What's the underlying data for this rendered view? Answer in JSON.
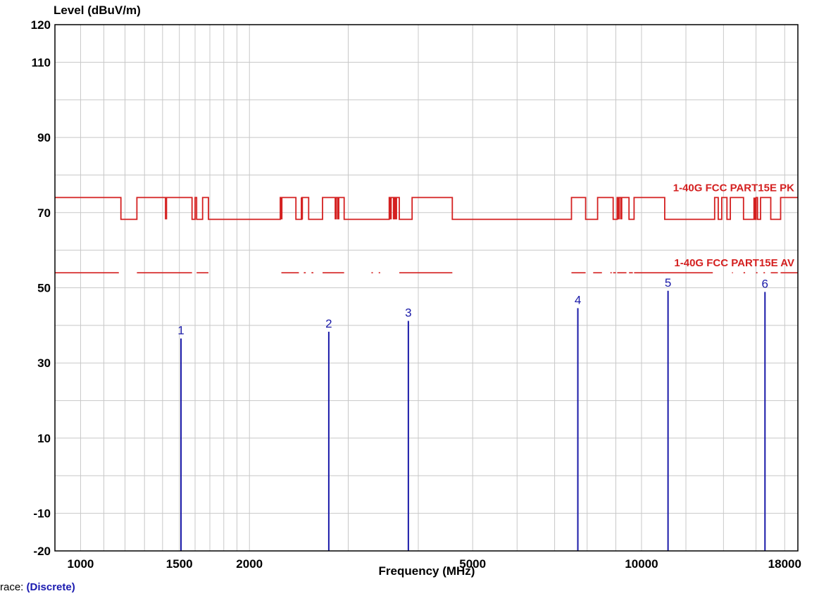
{
  "chart_data": {
    "type": "line",
    "ylabel": "Level (dBuV/m)",
    "xlabel": "Frequency (MHz)",
    "x_scale": "log",
    "xlim": [
      900,
      19000
    ],
    "ylim": [
      -20,
      120
    ],
    "y_ticks": [
      120,
      110,
      90,
      70,
      50,
      30,
      10,
      -10,
      -20
    ],
    "y_tick_labels": [
      "120",
      "110",
      "90",
      "70",
      "50",
      "30",
      "10",
      "-10",
      "-20"
    ],
    "x_ticks": [
      1000,
      1500,
      2000,
      5000,
      10000,
      18000
    ],
    "x_tick_labels": [
      "1000",
      "1500",
      "2000",
      "5000",
      "10000",
      "18000"
    ],
    "grid": true,
    "limit_lines": [
      {
        "name": "1-40G FCC PART15E PK",
        "color": "#d42020",
        "high": 74,
        "low": 68.2,
        "dips": [
          [
            1180,
            1260
          ],
          [
            1580,
            1600
          ],
          [
            1610,
            1650
          ],
          [
            1690,
            4300
          ],
          [
            7500,
            7950
          ],
          [
            8350,
            8600
          ],
          [
            9400,
            9500
          ],
          [
            9700,
            11000
          ],
          [
            13500,
            13700
          ],
          [
            13900,
            14200
          ],
          [
            14400,
            15200
          ],
          [
            16000,
            16100
          ],
          [
            16300,
            17000
          ],
          [
            17700,
            18000
          ]
        ],
        "spikes": [
          1420,
          2280,
          2480,
          2850,
          2880,
          3570,
          3620,
          3650,
          9100,
          9200,
          15900
        ],
        "segments": [
          [
            900,
            1180,
            74
          ],
          [
            1180,
            1260,
            68.2
          ],
          [
            1260,
            1580,
            74
          ],
          [
            1580,
            1600,
            68.2
          ],
          [
            1600,
            1610,
            74
          ],
          [
            1610,
            1650,
            68.2
          ],
          [
            1650,
            1690,
            74
          ],
          [
            1690,
            2270,
            68.2
          ],
          [
            2270,
            2420,
            74
          ],
          [
            2420,
            2480,
            68.2
          ],
          [
            2480,
            2550,
            74
          ],
          [
            2550,
            2700,
            68.2
          ],
          [
            2700,
            2950,
            74
          ],
          [
            2950,
            3550,
            68.2
          ],
          [
            3550,
            3700,
            74
          ],
          [
            3700,
            3900,
            68.2
          ],
          [
            3900,
            4600,
            74
          ],
          [
            4600,
            7500,
            68.2
          ],
          [
            7500,
            7950,
            74
          ],
          [
            7950,
            8350,
            68.2
          ],
          [
            8350,
            8900,
            74
          ],
          [
            8900,
            9050,
            68.2
          ],
          [
            9050,
            9500,
            74
          ],
          [
            9500,
            9700,
            68.2
          ],
          [
            9700,
            11000,
            74
          ],
          [
            11000,
            13500,
            68.2
          ],
          [
            13500,
            13700,
            74
          ],
          [
            13700,
            13900,
            68.2
          ],
          [
            13900,
            14200,
            74
          ],
          [
            14200,
            14400,
            68.2
          ],
          [
            14400,
            15200,
            74
          ],
          [
            15200,
            16000,
            68.2
          ],
          [
            16000,
            16100,
            74
          ],
          [
            16100,
            16300,
            68.2
          ],
          [
            16300,
            17000,
            74
          ],
          [
            17000,
            17700,
            68.2
          ],
          [
            17700,
            18000,
            74
          ],
          [
            18000,
            19000,
            74
          ]
        ]
      },
      {
        "name": "1-40G FCC PART15E AV",
        "color": "#d42020",
        "value": 54,
        "segments": [
          [
            900,
            1170
          ],
          [
            1260,
            1580
          ],
          [
            1610,
            1690
          ],
          [
            2280,
            2450
          ],
          [
            2500,
            2520
          ],
          [
            2580,
            2600
          ],
          [
            2700,
            2950
          ],
          [
            3300,
            3320
          ],
          [
            3400,
            3420
          ],
          [
            3700,
            4600
          ],
          [
            7500,
            7950
          ],
          [
            8200,
            8500
          ],
          [
            8800,
            8850
          ],
          [
            8900,
            9000
          ],
          [
            9050,
            9400
          ],
          [
            9500,
            9650
          ],
          [
            9700,
            11000
          ],
          [
            11000,
            13400
          ],
          [
            14500,
            14550
          ],
          [
            15200,
            15300
          ],
          [
            16000,
            16100
          ],
          [
            16500,
            16600
          ],
          [
            17000,
            17500
          ],
          [
            17700,
            19000
          ]
        ]
      }
    ],
    "series": [
      {
        "name": "(Discrete)",
        "type": "stem",
        "color": "#1a1aa8",
        "points": [
          {
            "label": "1",
            "x": 1510,
            "y": 36.5
          },
          {
            "label": "2",
            "x": 2770,
            "y": 38.3
          },
          {
            "label": "3",
            "x": 3840,
            "y": 41.2
          },
          {
            "label": "4",
            "x": 7700,
            "y": 44.6
          },
          {
            "label": "5",
            "x": 11150,
            "y": 49.2
          },
          {
            "label": "6",
            "x": 16600,
            "y": 48.9
          }
        ]
      }
    ]
  },
  "trace": {
    "label": "race:",
    "value": "(Discrete)"
  },
  "colors": {
    "grid": "#c8c8c8",
    "frame": "#000000",
    "limit": "#d42020",
    "marker": "#1a1aa8"
  }
}
